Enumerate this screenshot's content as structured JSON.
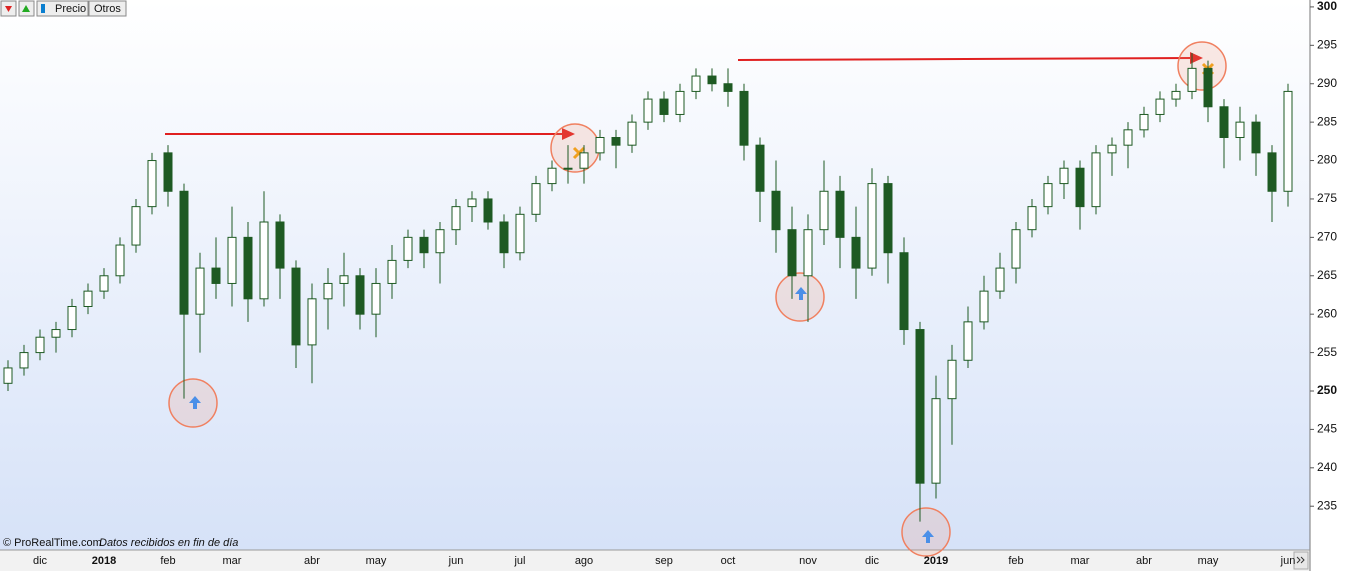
{
  "toolbar": [
    "Precio",
    "Otros"
  ],
  "chart_data": {
    "type": "candlestick",
    "source": "© ProRealTime.com",
    "note": "Datos recibidos en fin de día",
    "categories": [
      null,
      null,
      "dic",
      null,
      null,
      null,
      "2018",
      null,
      null,
      null,
      "feb",
      null,
      null,
      null,
      "mar",
      null,
      null,
      null,
      null,
      "abr",
      null,
      null,
      null,
      "may",
      null,
      null,
      null,
      null,
      "jun",
      null,
      null,
      null,
      "jul",
      null,
      null,
      null,
      "ago",
      null,
      null,
      null,
      null,
      "sep",
      null,
      null,
      null,
      "oct",
      null,
      null,
      null,
      null,
      "nov",
      null,
      null,
      null,
      "dic",
      null,
      null,
      null,
      "2019",
      null,
      null,
      null,
      null,
      "feb",
      null,
      null,
      null,
      "mar",
      null,
      null,
      null,
      "abr",
      null,
      null,
      null,
      "may",
      null,
      null,
      null,
      null,
      "jun"
    ],
    "open": [
      251,
      253,
      255,
      257,
      258,
      261,
      263,
      265,
      269,
      274,
      281,
      276,
      260,
      266,
      264,
      270,
      262,
      272,
      266,
      256,
      262,
      264,
      265,
      260,
      264,
      267,
      270,
      268,
      271,
      274,
      275,
      272,
      268,
      273,
      277,
      279,
      279,
      281,
      283,
      282,
      285,
      288,
      286,
      289,
      291,
      290,
      289,
      282,
      276,
      271,
      265,
      271,
      276,
      270,
      266,
      277,
      268,
      258,
      238,
      249,
      254,
      259,
      263,
      266,
      271,
      274,
      277,
      279,
      274,
      281,
      282,
      284,
      286,
      288,
      289,
      292,
      287,
      283,
      285,
      281,
      276
    ],
    "high": [
      254,
      256,
      258,
      259,
      262,
      264,
      266,
      270,
      275,
      281,
      282,
      277,
      268,
      270,
      274,
      272,
      276,
      273,
      267,
      264,
      266,
      268,
      266,
      266,
      269,
      271,
      271,
      272,
      275,
      276,
      276,
      273,
      274,
      278,
      280,
      282,
      282,
      284,
      284,
      286,
      289,
      289,
      290,
      292,
      292,
      292,
      290,
      283,
      280,
      274,
      273,
      280,
      278,
      274,
      279,
      278,
      270,
      259,
      252,
      256,
      261,
      265,
      268,
      272,
      275,
      278,
      280,
      280,
      282,
      283,
      285,
      287,
      289,
      290,
      294,
      293,
      288,
      287,
      286,
      282,
      290
    ],
    "low": [
      250,
      252,
      254,
      255,
      257,
      260,
      262,
      264,
      268,
      273,
      274,
      249,
      255,
      262,
      261,
      259,
      261,
      262,
      253,
      251,
      258,
      261,
      258,
      257,
      262,
      266,
      266,
      264,
      269,
      272,
      271,
      266,
      267,
      272,
      276,
      277,
      277,
      280,
      279,
      281,
      284,
      285,
      285,
      288,
      289,
      287,
      280,
      272,
      268,
      262,
      259,
      269,
      266,
      262,
      265,
      264,
      256,
      233,
      236,
      243,
      253,
      258,
      262,
      264,
      270,
      273,
      275,
      271,
      273,
      278,
      279,
      283,
      285,
      287,
      288,
      285,
      279,
      280,
      278,
      272,
      274
    ],
    "close": [
      253,
      255,
      257,
      258,
      261,
      263,
      265,
      269,
      274,
      280,
      276,
      260,
      266,
      264,
      270,
      262,
      272,
      266,
      256,
      262,
      264,
      265,
      260,
      264,
      267,
      270,
      268,
      271,
      274,
      275,
      272,
      268,
      273,
      277,
      279,
      279,
      281,
      283,
      282,
      285,
      288,
      286,
      289,
      291,
      290,
      289,
      282,
      276,
      271,
      265,
      271,
      276,
      270,
      266,
      277,
      268,
      258,
      238,
      249,
      254,
      259,
      263,
      266,
      271,
      274,
      277,
      279,
      274,
      281,
      282,
      284,
      286,
      288,
      289,
      292,
      287,
      283,
      285,
      281,
      276,
      289
    ],
    "up_color": "#ffffff",
    "down_color": "#1e5a23",
    "wick_color": "#1e5a23",
    "ylim": [
      229.3,
      300.9
    ],
    "yticks": [
      235,
      240,
      245,
      250,
      255,
      260,
      265,
      270,
      275,
      280,
      285,
      290,
      295,
      300
    ],
    "grid": false
  }
}
